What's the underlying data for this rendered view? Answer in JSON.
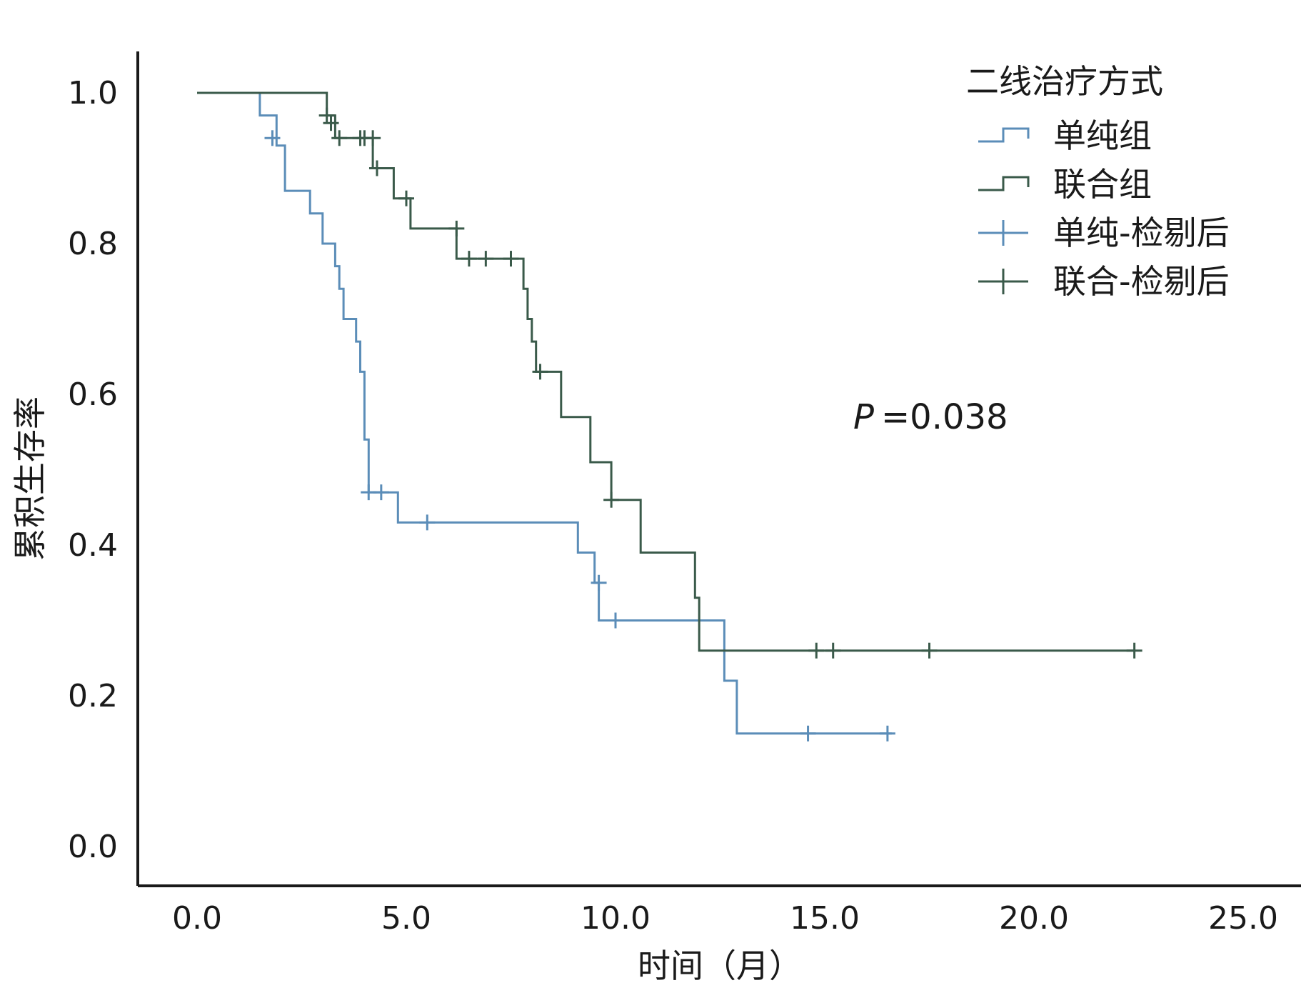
{
  "chart_data": {
    "type": "line",
    "subtype": "kaplan-meier",
    "xlabel": "时间（月）",
    "ylabel": "累积生存率",
    "xlim": [
      0,
      25
    ],
    "ylim": [
      0,
      1.0
    ],
    "x_ticks": [
      "0.0",
      "5.0",
      "10.0",
      "15.0",
      "20.0",
      "25.0"
    ],
    "y_ticks": [
      "0.0",
      "0.2",
      "0.4",
      "0.6",
      "0.8",
      "1.0"
    ],
    "grid": false,
    "legend": {
      "title": "二线治疗方式",
      "position": "top-right",
      "entries": [
        "单纯组",
        "联合组",
        "单纯-检剔后",
        "联合-检剔后"
      ]
    },
    "annotation": {
      "italic": "P",
      "rest": "=0.038"
    },
    "series": [
      {
        "name": "单纯组",
        "color": "#5b8db8",
        "steps": [
          [
            0.0,
            1.0
          ],
          [
            1.5,
            1.0
          ],
          [
            1.5,
            0.97
          ],
          [
            1.9,
            0.97
          ],
          [
            1.9,
            0.93
          ],
          [
            2.1,
            0.93
          ],
          [
            2.1,
            0.87
          ],
          [
            2.7,
            0.87
          ],
          [
            2.7,
            0.84
          ],
          [
            3.0,
            0.84
          ],
          [
            3.0,
            0.8
          ],
          [
            3.3,
            0.8
          ],
          [
            3.3,
            0.77
          ],
          [
            3.4,
            0.77
          ],
          [
            3.4,
            0.74
          ],
          [
            3.5,
            0.74
          ],
          [
            3.5,
            0.7
          ],
          [
            3.8,
            0.7
          ],
          [
            3.8,
            0.67
          ],
          [
            3.9,
            0.67
          ],
          [
            3.9,
            0.63
          ],
          [
            4.0,
            0.63
          ],
          [
            4.0,
            0.54
          ],
          [
            4.1,
            0.54
          ],
          [
            4.1,
            0.47
          ],
          [
            4.8,
            0.47
          ],
          [
            4.8,
            0.43
          ],
          [
            9.1,
            0.43
          ],
          [
            9.1,
            0.39
          ],
          [
            9.5,
            0.39
          ],
          [
            9.5,
            0.35
          ],
          [
            9.6,
            0.35
          ],
          [
            9.6,
            0.3
          ],
          [
            12.6,
            0.3
          ],
          [
            12.6,
            0.22
          ],
          [
            12.9,
            0.22
          ],
          [
            12.9,
            0.15
          ],
          [
            16.6,
            0.15
          ]
        ],
        "censor": [
          [
            1.8,
            0.94
          ],
          [
            4.1,
            0.47
          ],
          [
            4.4,
            0.47
          ],
          [
            5.5,
            0.43
          ],
          [
            9.6,
            0.35
          ],
          [
            10.0,
            0.3
          ],
          [
            14.6,
            0.15
          ],
          [
            16.5,
            0.15
          ]
        ]
      },
      {
        "name": "联合组",
        "color": "#3a5a4a",
        "steps": [
          [
            0.0,
            1.0
          ],
          [
            3.1,
            1.0
          ],
          [
            3.1,
            0.97
          ],
          [
            3.3,
            0.97
          ],
          [
            3.3,
            0.94
          ],
          [
            4.2,
            0.94
          ],
          [
            4.2,
            0.9
          ],
          [
            4.7,
            0.9
          ],
          [
            4.7,
            0.86
          ],
          [
            5.1,
            0.86
          ],
          [
            5.1,
            0.82
          ],
          [
            6.2,
            0.82
          ],
          [
            6.2,
            0.78
          ],
          [
            7.8,
            0.78
          ],
          [
            7.8,
            0.74
          ],
          [
            7.9,
            0.74
          ],
          [
            7.9,
            0.7
          ],
          [
            8.0,
            0.7
          ],
          [
            8.0,
            0.67
          ],
          [
            8.1,
            0.67
          ],
          [
            8.1,
            0.63
          ],
          [
            8.7,
            0.63
          ],
          [
            8.7,
            0.57
          ],
          [
            9.4,
            0.57
          ],
          [
            9.4,
            0.51
          ],
          [
            9.9,
            0.51
          ],
          [
            9.9,
            0.46
          ],
          [
            10.6,
            0.46
          ],
          [
            10.6,
            0.39
          ],
          [
            11.9,
            0.39
          ],
          [
            11.9,
            0.33
          ],
          [
            12.0,
            0.33
          ],
          [
            12.0,
            0.26
          ],
          [
            22.4,
            0.26
          ]
        ],
        "censor": [
          [
            3.1,
            0.97
          ],
          [
            3.2,
            0.96
          ],
          [
            3.4,
            0.94
          ],
          [
            3.9,
            0.94
          ],
          [
            4.0,
            0.94
          ],
          [
            4.2,
            0.94
          ],
          [
            4.3,
            0.9
          ],
          [
            5.0,
            0.86
          ],
          [
            6.2,
            0.82
          ],
          [
            6.5,
            0.78
          ],
          [
            6.9,
            0.78
          ],
          [
            7.5,
            0.78
          ],
          [
            8.2,
            0.63
          ],
          [
            9.9,
            0.46
          ],
          [
            14.8,
            0.26
          ],
          [
            15.2,
            0.26
          ],
          [
            17.5,
            0.26
          ],
          [
            22.4,
            0.26
          ]
        ]
      }
    ]
  }
}
